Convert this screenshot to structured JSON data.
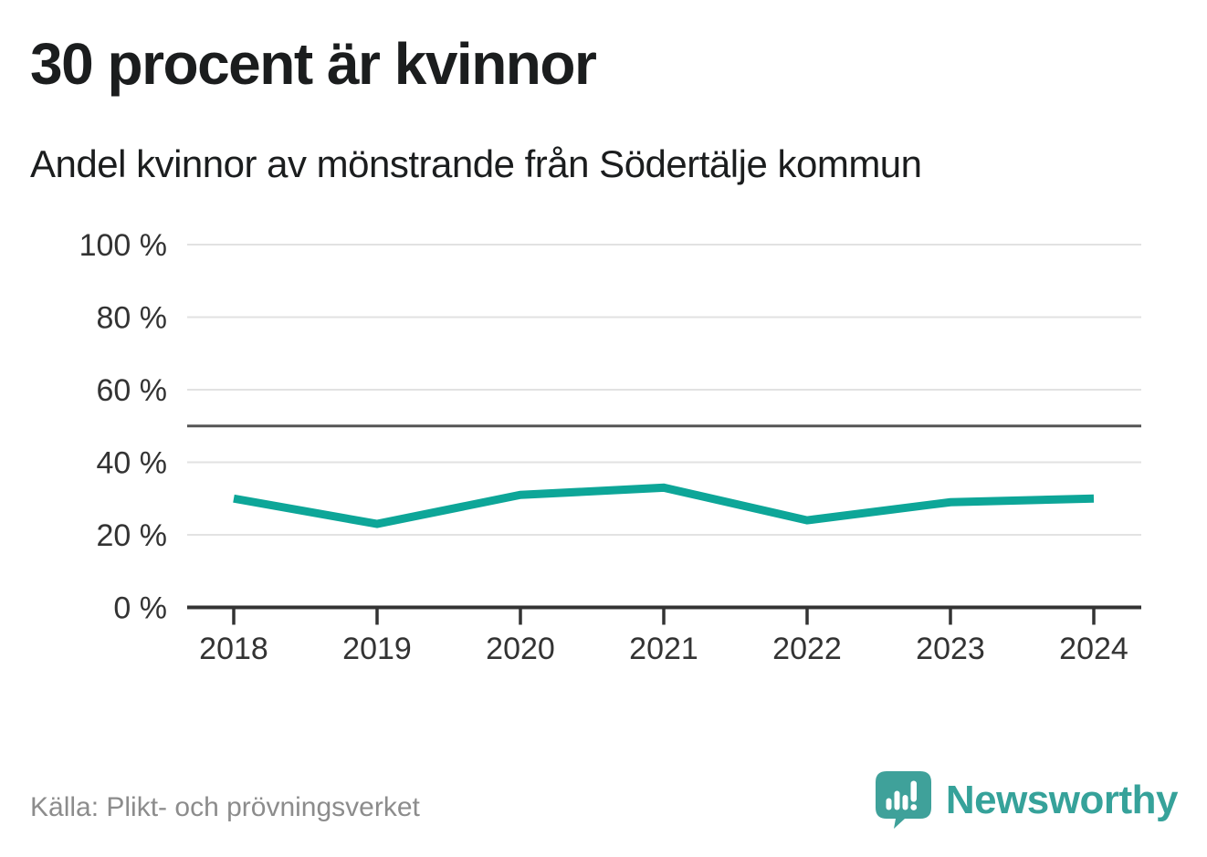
{
  "chart_data": {
    "type": "line",
    "title": "30 procent är kvinnor",
    "subtitle": "Andel kvinnor av mönstrande från Södertälje kommun",
    "x": [
      2018,
      2019,
      2020,
      2021,
      2022,
      2023,
      2024
    ],
    "series": [
      {
        "name": "Andel kvinnor av mönstrande",
        "values": [
          30,
          23,
          31,
          33,
          24,
          29,
          30
        ]
      }
    ],
    "unit": "%",
    "xlabel": "",
    "ylabel": "",
    "ylim": [
      0,
      100
    ],
    "yticks": [
      {
        "value": 0,
        "label": "0 %"
      },
      {
        "value": 20,
        "label": "20 %"
      },
      {
        "value": 40,
        "label": "40 %"
      },
      {
        "value": 60,
        "label": "60 %"
      },
      {
        "value": 80,
        "label": "80 %"
      },
      {
        "value": 100,
        "label": "100 %"
      }
    ],
    "reference_line": {
      "value": 50
    },
    "grid": true,
    "legend_position": "none",
    "colors": {
      "line": "#0da698",
      "grid": "#e2e2e2",
      "axis": "#333333",
      "reference": "#555555",
      "tick_text": "#333333"
    }
  },
  "footer": {
    "source": "Källa: Plikt- och prövningsverket",
    "brand": "Newsworthy",
    "brand_color": "#36a29a"
  }
}
